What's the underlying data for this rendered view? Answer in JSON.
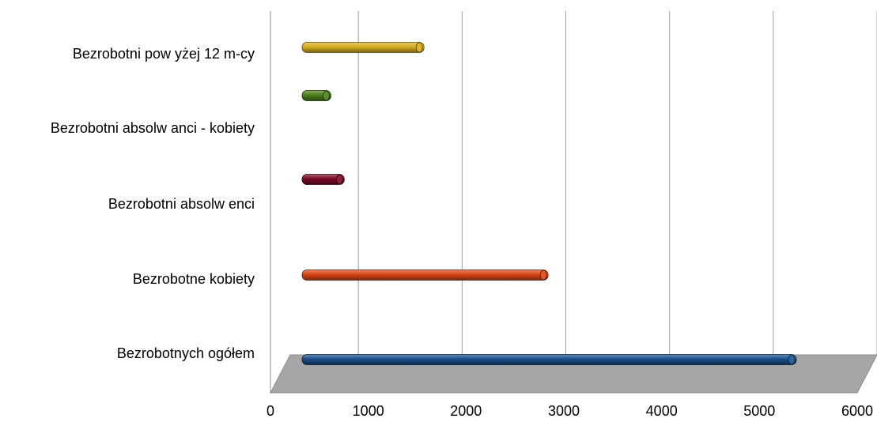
{
  "chart_data": {
    "type": "bar",
    "orientation": "horizontal",
    "categories": [
      "Bezrobotnych ogółem",
      "Bezrobotne kobiety",
      "Bezrobotni absolw enci",
      "Bezrobotni absolw anci - kobiety",
      "Bezrobotni pow yżej 12 m-cy"
    ],
    "values": [
      5540,
      2740,
      440,
      290,
      1340
    ],
    "colors": [
      "#1a4f8a",
      "#d84515",
      "#7a0a25",
      "#4c7d1a",
      "#d6ad20"
    ],
    "xlim": [
      0,
      6000
    ],
    "xticks": [
      0,
      1000,
      2000,
      3000,
      4000,
      5000,
      6000
    ],
    "grid": true,
    "legend": "none",
    "title": "",
    "xlabel": "",
    "ylabel": ""
  }
}
